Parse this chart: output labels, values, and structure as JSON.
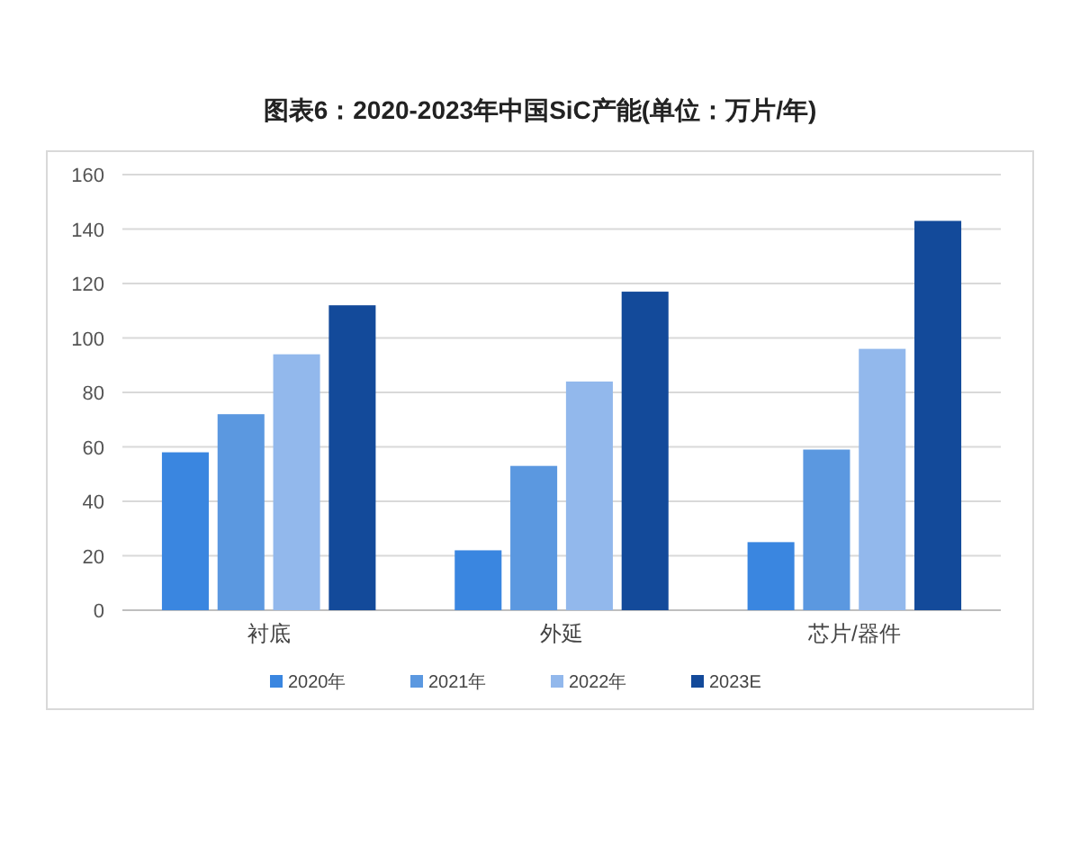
{
  "chart_data": {
    "type": "bar",
    "title": "图表6：2020-2023年中国SiC产能(单位：万片/年)",
    "categories": [
      "衬底",
      "外延",
      "芯片/器件"
    ],
    "series": [
      {
        "name": "2020年",
        "color": "#3a86e0",
        "values": [
          58,
          22,
          25
        ]
      },
      {
        "name": "2021年",
        "color": "#5b98e0",
        "values": [
          72,
          53,
          59
        ]
      },
      {
        "name": "2022年",
        "color": "#92b8ec",
        "values": [
          94,
          84,
          96
        ]
      },
      {
        "name": "2023E",
        "color": "#134a9a",
        "values": [
          112,
          117,
          143
        ]
      }
    ],
    "ylim": [
      0,
      160
    ],
    "yticks": [
      0,
      20,
      40,
      60,
      80,
      100,
      120,
      140,
      160
    ],
    "grid": "y",
    "legend": "bottom"
  }
}
